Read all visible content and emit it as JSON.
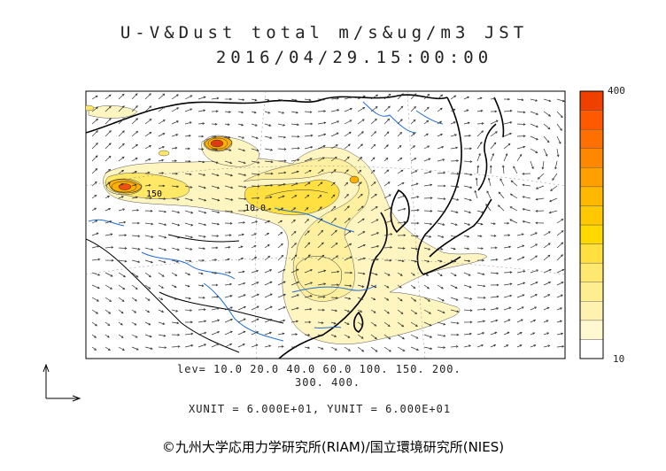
{
  "header": {
    "title_line1": "U-V&Dust total m/s&ug/m3 JST",
    "title_line2": "2016/04/29.15:00:00"
  },
  "colorbar": {
    "max_label": "400",
    "min_label": "10",
    "colors": [
      "#ffffff",
      "#fff8d0",
      "#fff2b0",
      "#ffee90",
      "#ffe870",
      "#ffe040",
      "#ffd800",
      "#ffc800",
      "#ffb800",
      "#ffa000",
      "#ff8800",
      "#ff7000",
      "#ff5a00",
      "#f04000"
    ]
  },
  "contour_labels": {
    "levels_line1": "lev= 10.0 20.0 40.0 60.0 100. 150. 200.",
    "levels_line2": "300. 400.",
    "units_line": "XUNIT = 6.000E+01, YUNIT = 6.000E+01",
    "in_map_label_a": "150",
    "in_map_label_b": "10 0"
  },
  "colors": {
    "dust_light": "#fff5c0",
    "dust_mid": "#ffe866",
    "dust_high": "#ffb000",
    "dust_peak": "#f05010",
    "rivers": "#1f6fd6",
    "coast": "#000000"
  },
  "credit": "©九州大学応用力学研究所(RIAM)/国立環境研究所(NIES)"
}
